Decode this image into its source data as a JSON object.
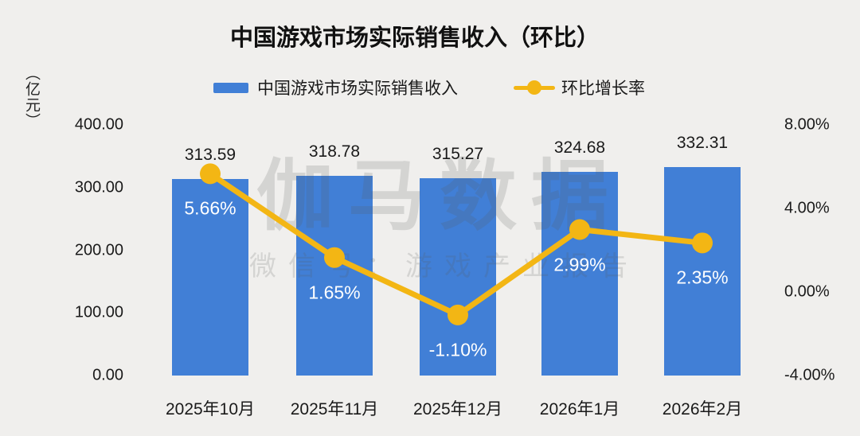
{
  "title": "中国游戏市场实际销售收入（环比）",
  "unit_label": "（亿元）",
  "legend": [
    {
      "label": "中国游戏市场实际销售收入",
      "marker": "bar-swatch"
    },
    {
      "label": "环比增长率",
      "marker": "line-dot"
    }
  ],
  "watermark": {
    "line1": "伽马数据",
    "line2": "微信号：游戏产业报告"
  },
  "colors": {
    "background": "#F0EFED",
    "bar": "#417FD6",
    "line": "#F3B614",
    "text": "#1A1A1A",
    "bar_inner_label": "#FFFFFF"
  },
  "chart_data": {
    "type": "bar+line combo",
    "title": "中国游戏市场实际销售收入（环比）",
    "categories": [
      "2025年10月",
      "2025年11月",
      "2025年12月",
      "2026年1月",
      "2026年2月"
    ],
    "series": [
      {
        "name": "中国游戏市场实际销售收入",
        "type": "bar",
        "y_axis": "left",
        "unit": "亿元",
        "values": [
          313.59,
          318.78,
          315.27,
          324.68,
          332.31
        ],
        "data_labels": [
          "313.59",
          "318.78",
          "315.27",
          "324.68",
          "332.31"
        ]
      },
      {
        "name": "环比增长率",
        "type": "line",
        "y_axis": "right",
        "unit": "%",
        "values": [
          5.66,
          1.65,
          -1.1,
          2.99,
          2.35
        ],
        "data_labels": [
          "5.66%",
          "1.65%",
          "-1.10%",
          "2.99%",
          "2.35%"
        ]
      }
    ],
    "left_axis": {
      "label": "（亿元）",
      "min": 0,
      "max": 400,
      "tick_values": [
        400,
        300,
        200,
        100,
        0
      ],
      "tick_labels": [
        "400.00",
        "300.00",
        "200.00",
        "100.00",
        "0.00"
      ]
    },
    "right_axis": {
      "min": -4,
      "max": 8,
      "tick_values": [
        8,
        4,
        0,
        -4
      ],
      "tick_labels": [
        "8.00%",
        "4.00%",
        "0.00%",
        "-4.00%"
      ]
    },
    "grid": false,
    "legend_position": "top"
  }
}
